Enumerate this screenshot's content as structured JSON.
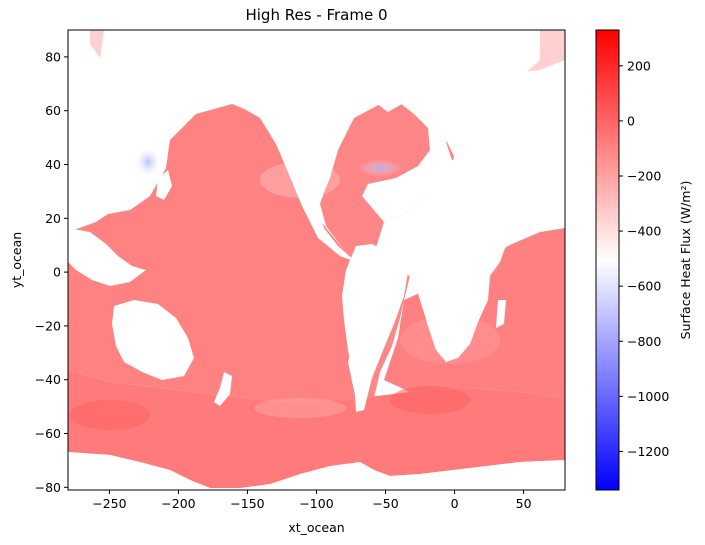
{
  "chart_data": {
    "type": "heatmap",
    "title": "High Res - Frame 0",
    "xlabel": "xt_ocean",
    "ylabel": "yt_ocean",
    "xlim": [
      -280,
      80
    ],
    "ylim": [
      -81,
      90
    ],
    "x_ticks": [
      -250,
      -200,
      -150,
      -100,
      -50,
      0,
      50
    ],
    "y_ticks": [
      -80,
      -60,
      -40,
      -20,
      0,
      20,
      40,
      60,
      80
    ],
    "colorbar": {
      "label": "Surface Heat Flux (W/m²)",
      "range": [
        -1340,
        330
      ],
      "ticks": [
        -1200,
        -1000,
        -800,
        -600,
        -400,
        -200,
        0,
        200
      ],
      "colormap": "bwr",
      "colors": {
        "low": "#0000ff",
        "mid": "#ffffff",
        "high": "#ff0000"
      }
    },
    "field": {
      "ocean_typical_value": -150,
      "notes_visible": "ocean mostly red/pink, blue patches near Arctic and NW Pacific/Atlantic"
    },
    "grid": false,
    "legend": "none"
  }
}
